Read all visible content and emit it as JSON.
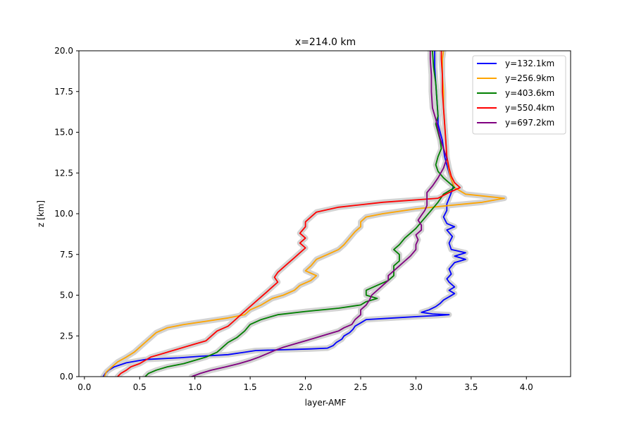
{
  "chart_data": {
    "type": "line",
    "title": "x=214.0 km",
    "xlabel": "layer-AMF",
    "ylabel": "z [km]",
    "xlim": [
      -0.05,
      4.4
    ],
    "ylim": [
      0,
      20
    ],
    "xticks": [
      0.0,
      0.5,
      1.0,
      1.5,
      2.0,
      2.5,
      3.0,
      3.5,
      4.0
    ],
    "xtick_labels": [
      "0.0",
      "0.5",
      "1.0",
      "1.5",
      "2.0",
      "2.5",
      "3.0",
      "3.5",
      "4.0"
    ],
    "yticks": [
      0,
      2.5,
      5,
      7.5,
      10,
      12.5,
      15,
      17.5,
      20
    ],
    "ytick_labels": [
      "0.0",
      "2.5",
      "5.0",
      "7.5",
      "10.0",
      "12.5",
      "15.0",
      "17.5",
      "20.0"
    ],
    "grid": false,
    "legend_position": "top-right",
    "uncertainty_band_color": "#d3d3d3",
    "series": [
      {
        "name": "y=132.1km",
        "color": "#0000ff",
        "points": [
          [
            0.17,
            0.0
          ],
          [
            0.19,
            0.2
          ],
          [
            0.22,
            0.4
          ],
          [
            0.27,
            0.6
          ],
          [
            0.38,
            0.85
          ],
          [
            0.55,
            1.05
          ],
          [
            0.85,
            1.15
          ],
          [
            1.05,
            1.25
          ],
          [
            1.3,
            1.35
          ],
          [
            1.45,
            1.5
          ],
          [
            1.55,
            1.6
          ],
          [
            2.05,
            1.7
          ],
          [
            2.2,
            1.75
          ],
          [
            2.25,
            1.9
          ],
          [
            2.28,
            2.1
          ],
          [
            2.33,
            2.3
          ],
          [
            2.35,
            2.5
          ],
          [
            2.4,
            2.7
          ],
          [
            2.43,
            2.9
          ],
          [
            2.45,
            3.1
          ],
          [
            2.5,
            3.3
          ],
          [
            2.55,
            3.5
          ],
          [
            2.8,
            3.6
          ],
          [
            3.05,
            3.7
          ],
          [
            3.2,
            3.75
          ],
          [
            3.3,
            3.8
          ],
          [
            3.15,
            3.85
          ],
          [
            3.05,
            3.95
          ],
          [
            3.12,
            4.1
          ],
          [
            3.18,
            4.3
          ],
          [
            3.22,
            4.5
          ],
          [
            3.25,
            4.7
          ],
          [
            3.3,
            4.9
          ],
          [
            3.35,
            5.1
          ],
          [
            3.3,
            5.3
          ],
          [
            3.35,
            5.5
          ],
          [
            3.3,
            5.8
          ],
          [
            3.28,
            6.0
          ],
          [
            3.32,
            6.3
          ],
          [
            3.3,
            6.6
          ],
          [
            3.35,
            7.0
          ],
          [
            3.45,
            7.2
          ],
          [
            3.35,
            7.4
          ],
          [
            3.45,
            7.6
          ],
          [
            3.32,
            7.8
          ],
          [
            3.3,
            8.2
          ],
          [
            3.33,
            8.6
          ],
          [
            3.28,
            9.0
          ],
          [
            3.35,
            9.2
          ],
          [
            3.28,
            9.4
          ],
          [
            3.25,
            9.8
          ],
          [
            3.28,
            10.2
          ],
          [
            3.28,
            10.6
          ],
          [
            3.3,
            10.95
          ],
          [
            3.32,
            11.3
          ],
          [
            3.34,
            11.7
          ],
          [
            3.32,
            12.1
          ],
          [
            3.3,
            12.5
          ],
          [
            3.28,
            13.0
          ],
          [
            3.26,
            13.5
          ],
          [
            3.25,
            14.0
          ],
          [
            3.24,
            14.5
          ],
          [
            3.22,
            15.0
          ],
          [
            3.2,
            15.5
          ],
          [
            3.2,
            16.0
          ],
          [
            3.19,
            17.0
          ],
          [
            3.18,
            18.0
          ],
          [
            3.17,
            19.0
          ],
          [
            3.17,
            20.0
          ]
        ]
      },
      {
        "name": "y=256.9km",
        "color": "#ffa500",
        "points": [
          [
            0.18,
            0.0
          ],
          [
            0.2,
            0.3
          ],
          [
            0.25,
            0.6
          ],
          [
            0.3,
            0.9
          ],
          [
            0.38,
            1.2
          ],
          [
            0.45,
            1.5
          ],
          [
            0.5,
            1.8
          ],
          [
            0.55,
            2.1
          ],
          [
            0.6,
            2.4
          ],
          [
            0.65,
            2.7
          ],
          [
            0.75,
            3.0
          ],
          [
            0.9,
            3.2
          ],
          [
            1.1,
            3.4
          ],
          [
            1.3,
            3.6
          ],
          [
            1.45,
            3.8
          ],
          [
            1.5,
            4.1
          ],
          [
            1.6,
            4.4
          ],
          [
            1.7,
            4.8
          ],
          [
            1.8,
            5.0
          ],
          [
            1.9,
            5.3
          ],
          [
            1.95,
            5.6
          ],
          [
            2.05,
            5.9
          ],
          [
            2.1,
            6.2
          ],
          [
            2.0,
            6.5
          ],
          [
            2.05,
            6.8
          ],
          [
            2.1,
            7.2
          ],
          [
            2.2,
            7.5
          ],
          [
            2.3,
            7.8
          ],
          [
            2.35,
            8.1
          ],
          [
            2.4,
            8.5
          ],
          [
            2.45,
            8.9
          ],
          [
            2.5,
            9.2
          ],
          [
            2.5,
            9.5
          ],
          [
            2.55,
            9.8
          ],
          [
            2.7,
            10.0
          ],
          [
            3.0,
            10.3
          ],
          [
            3.3,
            10.5
          ],
          [
            3.6,
            10.7
          ],
          [
            3.8,
            10.95
          ],
          [
            3.45,
            11.2
          ],
          [
            3.35,
            11.6
          ],
          [
            3.32,
            12.1
          ],
          [
            3.3,
            12.6
          ],
          [
            3.28,
            13.5
          ],
          [
            3.27,
            14.5
          ],
          [
            3.26,
            15.5
          ],
          [
            3.25,
            16.5
          ],
          [
            3.25,
            17.5
          ],
          [
            3.24,
            18.5
          ],
          [
            3.24,
            19.5
          ],
          [
            3.25,
            20.0
          ]
        ]
      },
      {
        "name": "y=403.6km",
        "color": "#008000",
        "points": [
          [
            0.55,
            0.0
          ],
          [
            0.58,
            0.2
          ],
          [
            0.65,
            0.4
          ],
          [
            0.75,
            0.6
          ],
          [
            0.9,
            0.8
          ],
          [
            1.0,
            1.0
          ],
          [
            1.1,
            1.2
          ],
          [
            1.2,
            1.5
          ],
          [
            1.25,
            1.8
          ],
          [
            1.3,
            2.1
          ],
          [
            1.38,
            2.4
          ],
          [
            1.45,
            2.8
          ],
          [
            1.5,
            3.2
          ],
          [
            1.6,
            3.5
          ],
          [
            1.75,
            3.8
          ],
          [
            2.0,
            4.0
          ],
          [
            2.3,
            4.2
          ],
          [
            2.5,
            4.4
          ],
          [
            2.55,
            4.6
          ],
          [
            2.65,
            4.8
          ],
          [
            2.55,
            5.0
          ],
          [
            2.55,
            5.3
          ],
          [
            2.65,
            5.6
          ],
          [
            2.75,
            5.9
          ],
          [
            2.8,
            6.2
          ],
          [
            2.8,
            6.5
          ],
          [
            2.8,
            6.8
          ],
          [
            2.85,
            7.1
          ],
          [
            2.85,
            7.5
          ],
          [
            2.8,
            7.8
          ],
          [
            2.85,
            8.1
          ],
          [
            2.9,
            8.5
          ],
          [
            2.95,
            8.8
          ],
          [
            3.0,
            9.1
          ],
          [
            3.05,
            9.5
          ],
          [
            3.1,
            9.9
          ],
          [
            3.15,
            10.3
          ],
          [
            3.2,
            10.7
          ],
          [
            3.25,
            11.2
          ],
          [
            3.35,
            11.6
          ],
          [
            3.3,
            11.9
          ],
          [
            3.25,
            12.2
          ],
          [
            3.2,
            12.6
          ],
          [
            3.18,
            13.0
          ],
          [
            3.2,
            13.5
          ],
          [
            3.23,
            14.0
          ],
          [
            3.22,
            14.5
          ],
          [
            3.2,
            15.0
          ],
          [
            3.18,
            15.5
          ],
          [
            3.2,
            16.0
          ],
          [
            3.19,
            17.0
          ],
          [
            3.18,
            18.0
          ],
          [
            3.16,
            19.0
          ],
          [
            3.15,
            20.0
          ]
        ]
      },
      {
        "name": "y=550.4km",
        "color": "#ff0000",
        "points": [
          [
            0.3,
            0.0
          ],
          [
            0.33,
            0.2
          ],
          [
            0.38,
            0.4
          ],
          [
            0.42,
            0.6
          ],
          [
            0.5,
            0.8
          ],
          [
            0.55,
            1.0
          ],
          [
            0.6,
            1.2
          ],
          [
            0.7,
            1.4
          ],
          [
            0.8,
            1.6
          ],
          [
            0.9,
            1.8
          ],
          [
            1.0,
            2.0
          ],
          [
            1.1,
            2.2
          ],
          [
            1.15,
            2.5
          ],
          [
            1.2,
            2.8
          ],
          [
            1.3,
            3.1
          ],
          [
            1.35,
            3.4
          ],
          [
            1.4,
            3.7
          ],
          [
            1.45,
            4.0
          ],
          [
            1.5,
            4.3
          ],
          [
            1.55,
            4.6
          ],
          [
            1.6,
            4.9
          ],
          [
            1.65,
            5.2
          ],
          [
            1.7,
            5.5
          ],
          [
            1.75,
            5.8
          ],
          [
            1.72,
            6.1
          ],
          [
            1.75,
            6.4
          ],
          [
            1.8,
            6.7
          ],
          [
            1.85,
            7.0
          ],
          [
            1.9,
            7.3
          ],
          [
            1.95,
            7.6
          ],
          [
            2.0,
            7.9
          ],
          [
            1.95,
            8.2
          ],
          [
            2.0,
            8.5
          ],
          [
            1.95,
            8.8
          ],
          [
            2.0,
            9.2
          ],
          [
            2.0,
            9.5
          ],
          [
            2.05,
            9.8
          ],
          [
            2.1,
            10.1
          ],
          [
            2.3,
            10.4
          ],
          [
            2.7,
            10.7
          ],
          [
            3.2,
            10.95
          ],
          [
            3.3,
            11.3
          ],
          [
            3.4,
            11.6
          ],
          [
            3.35,
            11.9
          ],
          [
            3.32,
            12.3
          ],
          [
            3.3,
            12.8
          ],
          [
            3.28,
            13.5
          ],
          [
            3.27,
            14.5
          ],
          [
            3.26,
            15.5
          ],
          [
            3.25,
            16.5
          ],
          [
            3.24,
            17.5
          ],
          [
            3.24,
            18.5
          ],
          [
            3.23,
            19.5
          ],
          [
            3.23,
            20.0
          ]
        ]
      },
      {
        "name": "y=697.2km",
        "color": "#800080",
        "points": [
          [
            0.97,
            0.0
          ],
          [
            1.05,
            0.2
          ],
          [
            1.15,
            0.4
          ],
          [
            1.28,
            0.6
          ],
          [
            1.4,
            0.8
          ],
          [
            1.5,
            1.0
          ],
          [
            1.58,
            1.2
          ],
          [
            1.65,
            1.4
          ],
          [
            1.72,
            1.6
          ],
          [
            1.8,
            1.8
          ],
          [
            1.9,
            2.0
          ],
          [
            2.0,
            2.2
          ],
          [
            2.1,
            2.4
          ],
          [
            2.2,
            2.6
          ],
          [
            2.3,
            2.8
          ],
          [
            2.35,
            3.0
          ],
          [
            2.42,
            3.2
          ],
          [
            2.45,
            3.5
          ],
          [
            2.5,
            3.8
          ],
          [
            2.5,
            4.1
          ],
          [
            2.55,
            4.4
          ],
          [
            2.58,
            4.7
          ],
          [
            2.6,
            5.0
          ],
          [
            2.65,
            5.3
          ],
          [
            2.7,
            5.6
          ],
          [
            2.75,
            5.9
          ],
          [
            2.75,
            6.2
          ],
          [
            2.8,
            6.5
          ],
          [
            2.85,
            6.8
          ],
          [
            2.9,
            7.1
          ],
          [
            2.95,
            7.4
          ],
          [
            3.0,
            7.8
          ],
          [
            3.0,
            8.1
          ],
          [
            3.02,
            8.4
          ],
          [
            3.0,
            8.7
          ],
          [
            3.05,
            9.0
          ],
          [
            3.05,
            9.3
          ],
          [
            3.02,
            9.6
          ],
          [
            3.05,
            9.9
          ],
          [
            3.08,
            10.2
          ],
          [
            3.1,
            10.5
          ],
          [
            3.1,
            10.9
          ],
          [
            3.1,
            11.3
          ],
          [
            3.15,
            11.7
          ],
          [
            3.2,
            12.2
          ],
          [
            3.25,
            12.8
          ],
          [
            3.28,
            13.4
          ],
          [
            3.25,
            14.0
          ],
          [
            3.22,
            14.6
          ],
          [
            3.2,
            15.2
          ],
          [
            3.18,
            15.8
          ],
          [
            3.15,
            16.5
          ],
          [
            3.14,
            17.5
          ],
          [
            3.14,
            18.5
          ],
          [
            3.13,
            19.5
          ],
          [
            3.13,
            20.0
          ]
        ]
      }
    ]
  }
}
